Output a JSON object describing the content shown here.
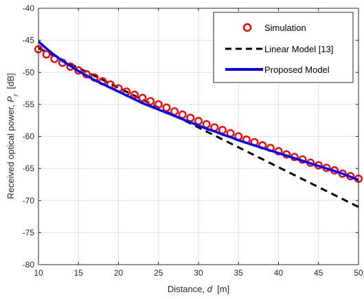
{
  "chart_data": {
    "type": "line",
    "xlabel": {
      "prefix": "Distance, ",
      "var": "d",
      "suffix": "  [m]"
    },
    "ylabel": {
      "prefix": "Received optical power, ",
      "var": "P",
      "sub": "r",
      "suffix": "  [dB]"
    },
    "xlim": [
      10,
      50
    ],
    "ylim": [
      -80,
      -40
    ],
    "xticks": [
      10,
      15,
      20,
      25,
      30,
      35,
      40,
      45,
      50
    ],
    "yticks": [
      -80,
      -75,
      -70,
      -65,
      -60,
      -55,
      -50,
      -45,
      -40
    ],
    "grid": true,
    "legend_position": "top-right",
    "series": [
      {
        "name": "Simulation",
        "style": "circle-markers",
        "color": "#ff0000",
        "x": [
          10,
          11,
          12,
          13,
          14,
          15,
          16,
          17,
          18,
          19,
          20,
          21,
          22,
          23,
          24,
          25,
          26,
          27,
          28,
          29,
          30,
          31,
          32,
          33,
          34,
          35,
          36,
          37,
          38,
          39,
          40,
          41,
          42,
          43,
          44,
          45,
          46,
          47,
          48,
          49,
          50
        ],
        "y": [
          -46.4,
          -47.2,
          -47.9,
          -48.5,
          -49.1,
          -49.7,
          -50.3,
          -50.8,
          -51.4,
          -51.9,
          -52.5,
          -53.0,
          -53.5,
          -54.0,
          -54.5,
          -55.0,
          -55.5,
          -56.1,
          -56.6,
          -57.1,
          -57.6,
          -58.1,
          -58.6,
          -59.0,
          -59.5,
          -60.0,
          -60.5,
          -60.9,
          -61.4,
          -61.8,
          -62.3,
          -62.8,
          -63.2,
          -63.6,
          -64.1,
          -64.5,
          -64.9,
          -65.3,
          -65.8,
          -66.2,
          -66.6
        ]
      },
      {
        "name": "Linear Model [13]",
        "style": "dashed",
        "color": "#000000",
        "x": [
          10,
          50
        ],
        "y": [
          -46.2,
          -71.0
        ]
      },
      {
        "name": "Proposed Model",
        "style": "solid",
        "color": "#0000ff",
        "x": [
          10,
          11,
          12,
          13,
          14,
          15,
          16,
          17,
          18,
          19,
          20,
          21,
          22,
          23,
          24,
          25,
          26,
          27,
          28,
          29,
          30,
          31,
          32,
          33,
          34,
          35,
          36,
          37,
          38,
          39,
          40,
          41,
          42,
          43,
          44,
          45,
          46,
          47,
          48,
          49,
          50
        ],
        "y": [
          -45.2,
          -46.3,
          -47.3,
          -48.2,
          -49.0,
          -49.8,
          -50.5,
          -51.2,
          -51.8,
          -52.4,
          -53.0,
          -53.6,
          -54.2,
          -54.8,
          -55.3,
          -55.8,
          -56.3,
          -56.8,
          -57.3,
          -57.8,
          -58.3,
          -58.8,
          -59.2,
          -59.7,
          -60.1,
          -60.6,
          -61.0,
          -61.4,
          -61.8,
          -62.2,
          -62.6,
          -63.0,
          -63.4,
          -63.8,
          -64.2,
          -64.6,
          -65.0,
          -65.4,
          -65.8,
          -66.3,
          -66.8
        ]
      }
    ]
  }
}
